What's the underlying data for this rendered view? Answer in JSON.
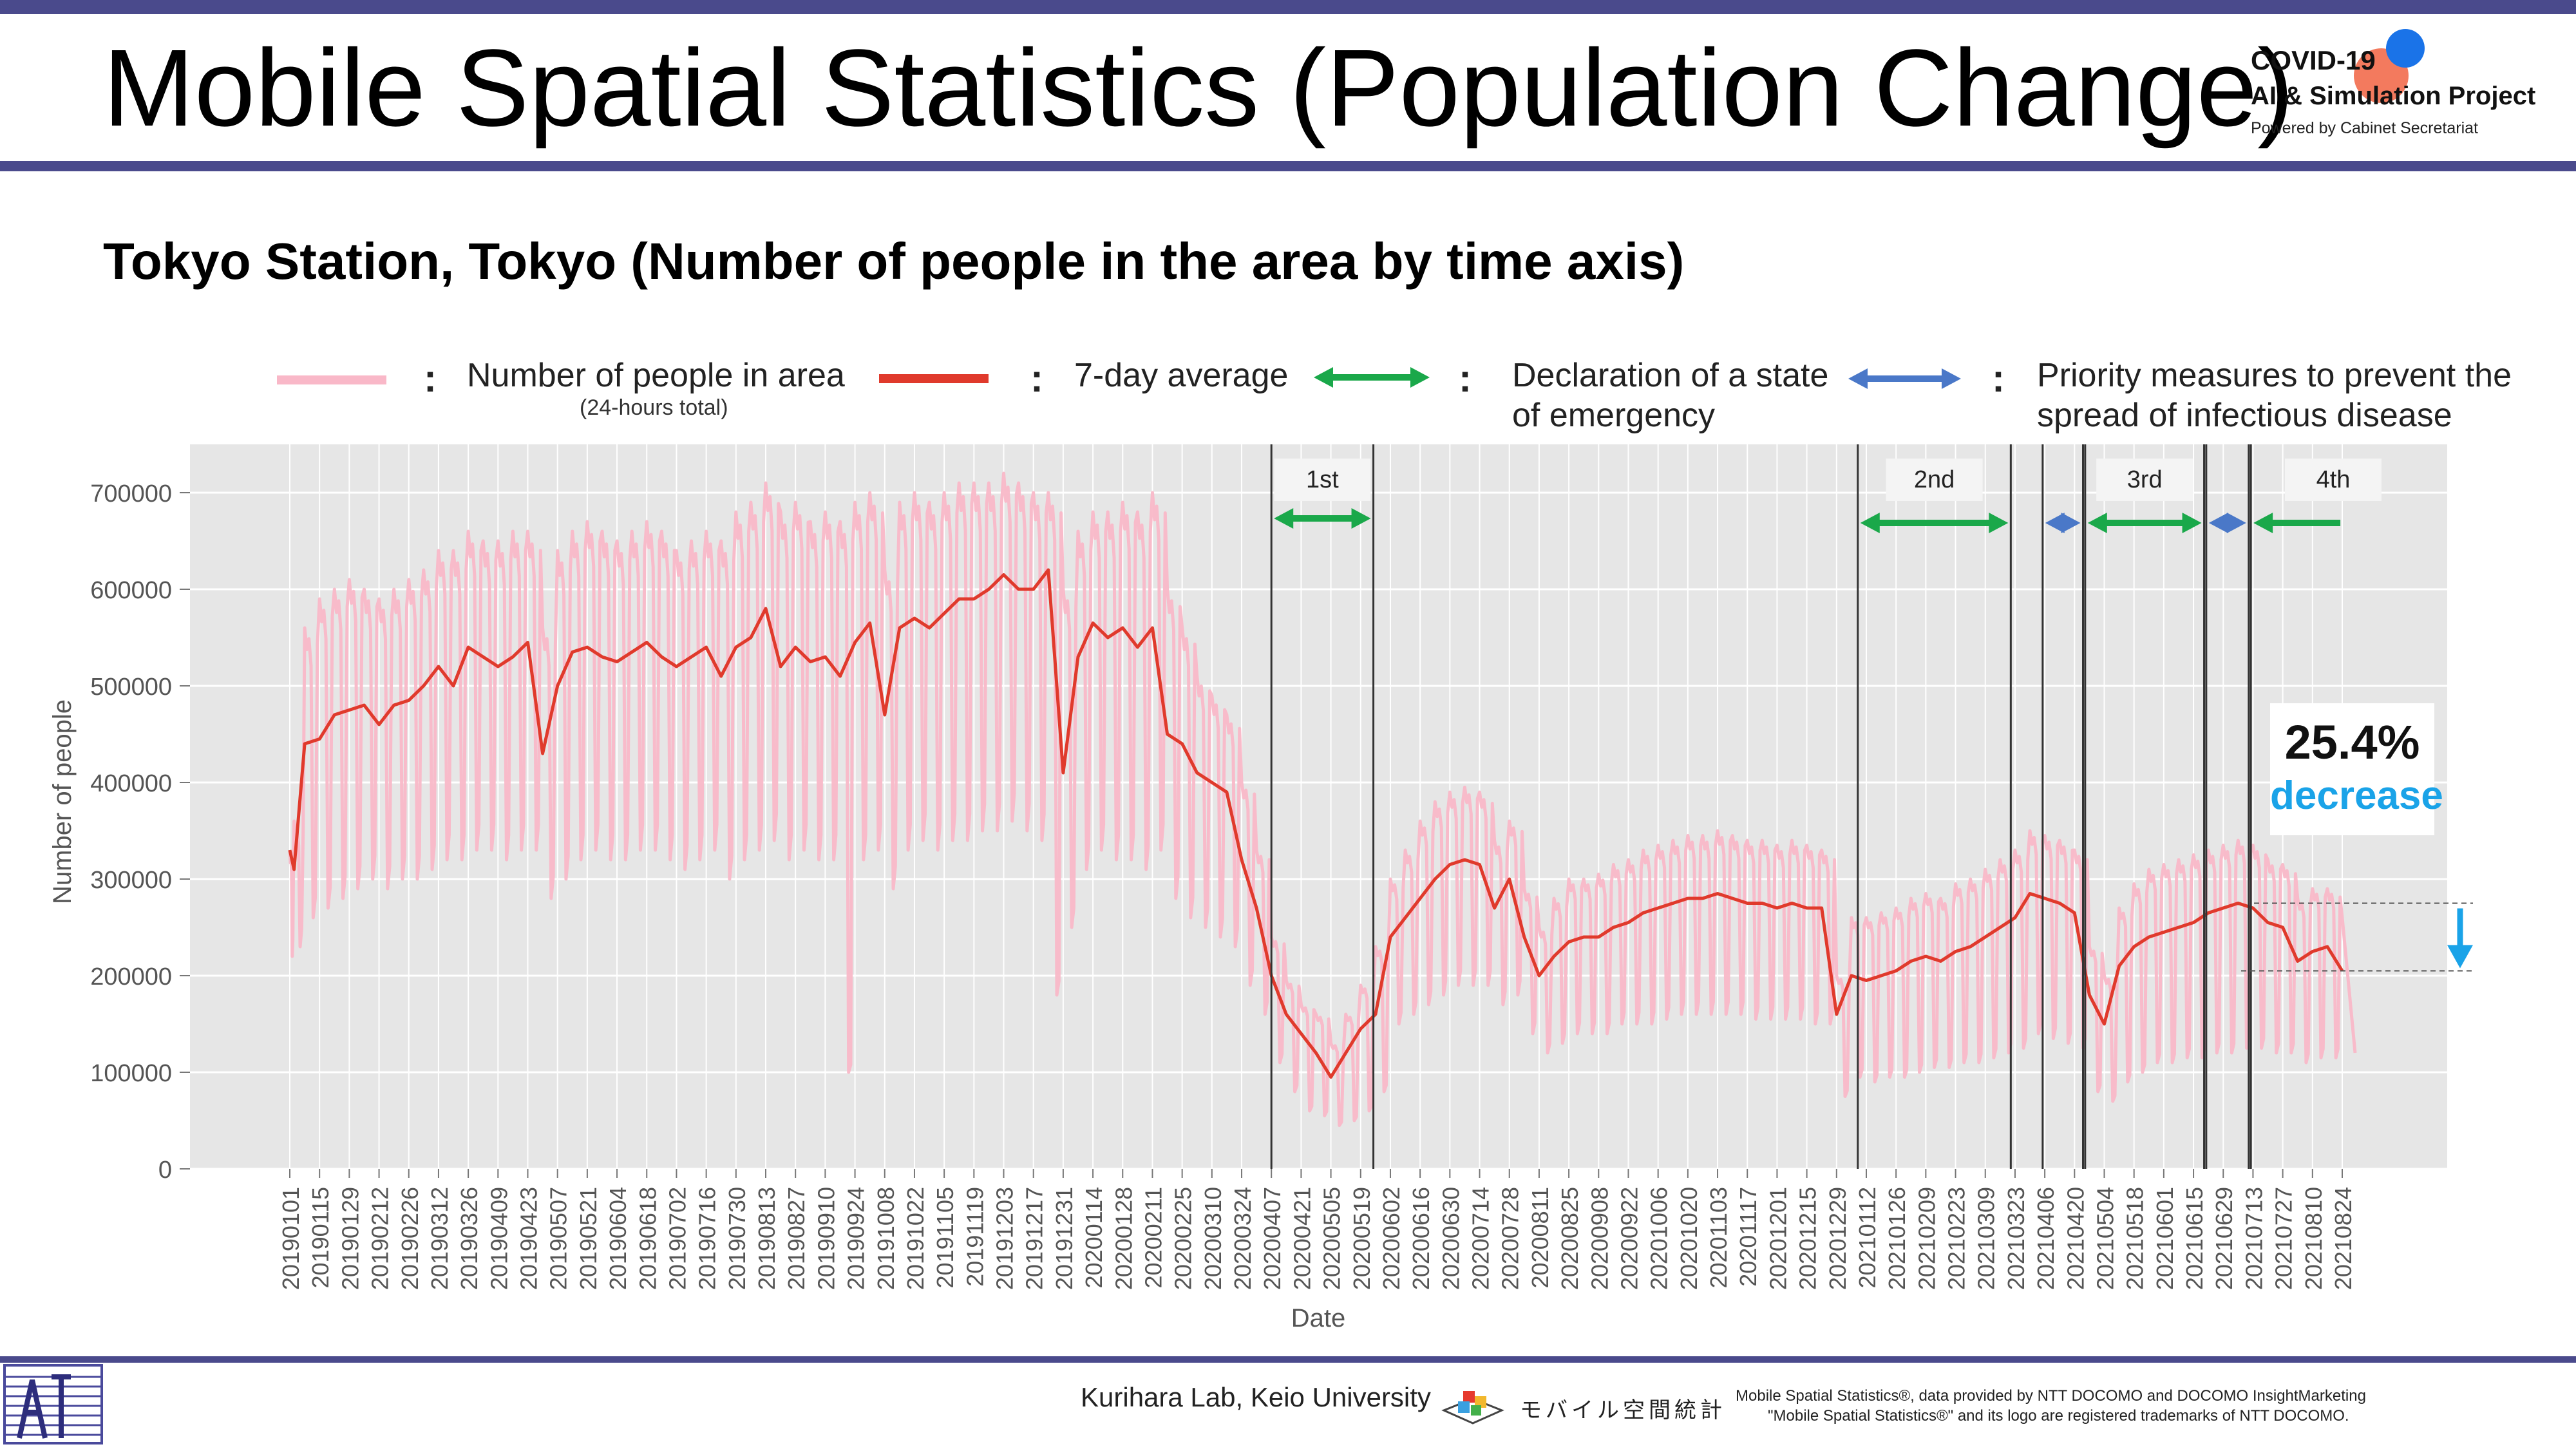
{
  "header": {
    "title": "Mobile Spatial Statistics (Population Change)",
    "logo_line1": "COVID-19",
    "logo_line2": "AI & Simulation Project",
    "logo_line3": "Powered by Cabinet Secretariat"
  },
  "subtitle": "Tokyo Station, Tokyo (Number of people in the area by time axis)",
  "legend": {
    "daily": "Number of people in area",
    "daily_note": "(24-hours total)",
    "avg": "7-day average",
    "emergency_line1": "Declaration of a state",
    "emergency_line2": "of emergency",
    "priority_line1": "Priority measures to prevent the",
    "priority_line2": "spread of infectious disease",
    "colon": ":"
  },
  "colors": {
    "daily": "#f9b8c8",
    "avg": "#e03a2c",
    "emergency": "#1aa84a",
    "priority": "#4a78c8",
    "plot_bg": "#e6e6e6",
    "grid": "#ffffff",
    "callout": "#1aa3e8"
  },
  "callout": {
    "percent": "25.4%",
    "word": "decrease"
  },
  "footer": {
    "lab": "Kurihara Lab, Keio University",
    "brand_jp": "モバイル空間統計",
    "notice_line1": "Mobile Spatial Statistics®, data provided by NTT DOCOMO and DOCOMO InsightMarketing",
    "notice_line2": "\"Mobile Spatial Statistics®\" and its logo are registered trademarks of NTT DOCOMO."
  },
  "chart_data": {
    "type": "line",
    "xlabel": "Date",
    "ylabel": "Number of people",
    "ylim": [
      0,
      750000
    ],
    "yticks": [
      0,
      100000,
      200000,
      300000,
      400000,
      500000,
      600000,
      700000
    ],
    "xticks": [
      "20190101",
      "20190115",
      "20190129",
      "20190212",
      "20190226",
      "20190312",
      "20190326",
      "20190409",
      "20190423",
      "20190507",
      "20190521",
      "20190604",
      "20190618",
      "20190702",
      "20190716",
      "20190730",
      "20190813",
      "20190827",
      "20190910",
      "20190924",
      "20191008",
      "20191022",
      "20191105",
      "20191119",
      "20191203",
      "20191217",
      "20191231",
      "20200114",
      "20200128",
      "20200211",
      "20200225",
      "20200310",
      "20200324",
      "20200407",
      "20200421",
      "20200505",
      "20200519",
      "20200602",
      "20200616",
      "20200630",
      "20200714",
      "20200728",
      "20200811",
      "20200825",
      "20200908",
      "20200922",
      "20201006",
      "20201020",
      "20201103",
      "20201117",
      "20201201",
      "20201215",
      "20201229",
      "20210112",
      "20210126",
      "20210209",
      "20210223",
      "20210309",
      "20210323",
      "20210406",
      "20210420",
      "20210504",
      "20210518",
      "20210601",
      "20210615",
      "20210629",
      "20210713",
      "20210727",
      "20210810",
      "20210824"
    ],
    "grid": true,
    "periods": [
      {
        "label": "1st",
        "kind": "emergency",
        "start": "20200407",
        "end": "20200525"
      },
      {
        "label": "2nd",
        "kind": "emergency",
        "start": "20210108",
        "end": "20210321"
      },
      {
        "label": "",
        "kind": "priority",
        "start": "20210405",
        "end": "20210424"
      },
      {
        "label": "3rd",
        "kind": "emergency",
        "start": "20210425",
        "end": "20210620"
      },
      {
        "label": "",
        "kind": "priority",
        "start": "20210621",
        "end": "20210711"
      },
      {
        "label": "4th",
        "kind": "emergency",
        "start": "20210712",
        "end": "20210831"
      }
    ],
    "series": [
      {
        "name": "7-day average",
        "x": [
          "20190101",
          "20190103",
          "20190108",
          "20190115",
          "20190122",
          "20190129",
          "20190205",
          "20190212",
          "20190219",
          "20190226",
          "20190305",
          "20190312",
          "20190319",
          "20190326",
          "20190402",
          "20190409",
          "20190416",
          "20190423",
          "20190430",
          "20190507",
          "20190514",
          "20190521",
          "20190528",
          "20190604",
          "20190611",
          "20190618",
          "20190625",
          "20190702",
          "20190709",
          "20190716",
          "20190723",
          "20190730",
          "20190806",
          "20190813",
          "20190820",
          "20190827",
          "20190903",
          "20190910",
          "20190917",
          "20190924",
          "20191001",
          "20191008",
          "20191015",
          "20191022",
          "20191029",
          "20191105",
          "20191112",
          "20191119",
          "20191126",
          "20191203",
          "20191210",
          "20191217",
          "20191224",
          "20191231",
          "20200107",
          "20200114",
          "20200121",
          "20200128",
          "20200204",
          "20200211",
          "20200218",
          "20200225",
          "20200303",
          "20200310",
          "20200317",
          "20200324",
          "20200331",
          "20200407",
          "20200414",
          "20200421",
          "20200428",
          "20200505",
          "20200512",
          "20200519",
          "20200526",
          "20200602",
          "20200609",
          "20200616",
          "20200623",
          "20200630",
          "20200707",
          "20200714",
          "20200721",
          "20200728",
          "20200804",
          "20200811",
          "20200818",
          "20200825",
          "20200901",
          "20200908",
          "20200915",
          "20200922",
          "20200929",
          "20201006",
          "20201013",
          "20201020",
          "20201027",
          "20201103",
          "20201110",
          "20201117",
          "20201124",
          "20201201",
          "20201208",
          "20201215",
          "20201222",
          "20201229",
          "20210105",
          "20210112",
          "20210119",
          "20210126",
          "20210202",
          "20210209",
          "20210216",
          "20210223",
          "20210302",
          "20210309",
          "20210316",
          "20210323",
          "20210330",
          "20210406",
          "20210413",
          "20210420",
          "20210427",
          "20210504",
          "20210511",
          "20210518",
          "20210525",
          "20210601",
          "20210608",
          "20210615",
          "20210622",
          "20210629",
          "20210706",
          "20210713",
          "20210720",
          "20210727",
          "20210803",
          "20210810",
          "20210817",
          "20210824"
        ],
        "values": [
          330000,
          310000,
          440000,
          445000,
          470000,
          475000,
          480000,
          460000,
          480000,
          485000,
          500000,
          520000,
          500000,
          540000,
          530000,
          520000,
          530000,
          545000,
          430000,
          500000,
          535000,
          540000,
          530000,
          525000,
          535000,
          545000,
          530000,
          520000,
          530000,
          540000,
          510000,
          540000,
          550000,
          580000,
          520000,
          540000,
          525000,
          530000,
          510000,
          545000,
          565000,
          470000,
          560000,
          570000,
          560000,
          575000,
          590000,
          590000,
          600000,
          615000,
          600000,
          600000,
          620000,
          410000,
          530000,
          565000,
          550000,
          560000,
          540000,
          560000,
          450000,
          440000,
          410000,
          400000,
          390000,
          320000,
          270000,
          200000,
          160000,
          140000,
          120000,
          95000,
          120000,
          145000,
          160000,
          240000,
          260000,
          280000,
          300000,
          315000,
          320000,
          315000,
          270000,
          300000,
          240000,
          200000,
          220000,
          235000,
          240000,
          240000,
          250000,
          255000,
          265000,
          270000,
          275000,
          280000,
          280000,
          285000,
          280000,
          275000,
          275000,
          270000,
          275000,
          270000,
          270000,
          160000,
          200000,
          195000,
          200000,
          205000,
          215000,
          220000,
          215000,
          225000,
          230000,
          240000,
          250000,
          260000,
          285000,
          280000,
          275000,
          265000,
          180000,
          150000,
          210000,
          230000,
          240000,
          245000,
          250000,
          255000,
          265000,
          270000,
          275000,
          270000,
          255000,
          250000,
          215000,
          225000,
          230000,
          205000
        ]
      },
      {
        "name": "Number of people in area",
        "weekday_high": [
          330000,
          360000,
          560000,
          590000,
          600000,
          610000,
          600000,
          590000,
          600000,
          610000,
          620000,
          640000,
          640000,
          660000,
          650000,
          650000,
          660000,
          660000,
          560000,
          640000,
          660000,
          670000,
          660000,
          650000,
          660000,
          670000,
          660000,
          640000,
          650000,
          660000,
          650000,
          680000,
          690000,
          710000,
          680000,
          690000,
          670000,
          680000,
          670000,
          690000,
          700000,
          620000,
          690000,
          700000,
          690000,
          700000,
          710000,
          710000,
          710000,
          720000,
          710000,
          700000,
          700000,
          600000,
          660000,
          680000,
          680000,
          690000,
          680000,
          700000,
          600000,
          560000,
          510000,
          490000,
          470000,
          400000,
          330000,
          240000,
          195000,
          170000,
          160000,
          130000,
          160000,
          190000,
          230000,
          300000,
          330000,
          360000,
          380000,
          390000,
          395000,
          390000,
          340000,
          360000,
          290000,
          250000,
          280000,
          300000,
          300000,
          305000,
          315000,
          320000,
          330000,
          335000,
          340000,
          345000,
          345000,
          350000,
          345000,
          340000,
          340000,
          335000,
          340000,
          335000,
          330000,
          200000,
          260000,
          260000,
          265000,
          270000,
          280000,
          285000,
          280000,
          295000,
          300000,
          310000,
          320000,
          330000,
          350000,
          345000,
          340000,
          330000,
          230000,
          200000,
          270000,
          295000,
          310000,
          315000,
          320000,
          325000,
          330000,
          335000,
          340000,
          335000,
          320000,
          315000,
          280000,
          290000,
          290000,
          260000
        ],
        "weekend_low": [
          220000,
          230000,
          260000,
          270000,
          280000,
          290000,
          300000,
          290000,
          300000,
          300000,
          310000,
          320000,
          320000,
          330000,
          330000,
          320000,
          330000,
          330000,
          280000,
          300000,
          320000,
          330000,
          320000,
          320000,
          330000,
          330000,
          320000,
          310000,
          320000,
          330000,
          300000,
          320000,
          330000,
          340000,
          320000,
          330000,
          320000,
          320000,
          100000,
          320000,
          330000,
          290000,
          330000,
          340000,
          330000,
          340000,
          340000,
          350000,
          350000,
          360000,
          350000,
          340000,
          180000,
          250000,
          310000,
          330000,
          320000,
          320000,
          310000,
          330000,
          280000,
          260000,
          250000,
          240000,
          230000,
          190000,
          160000,
          110000,
          80000,
          60000,
          55000,
          45000,
          50000,
          60000,
          80000,
          150000,
          160000,
          170000,
          180000,
          190000,
          190000,
          190000,
          170000,
          180000,
          140000,
          120000,
          130000,
          140000,
          140000,
          140000,
          150000,
          150000,
          150000,
          155000,
          160000,
          160000,
          160000,
          160000,
          160000,
          155000,
          155000,
          155000,
          155000,
          150000,
          150000,
          75000,
          95000,
          90000,
          95000,
          95000,
          100000,
          105000,
          105000,
          110000,
          110000,
          115000,
          120000,
          125000,
          140000,
          135000,
          130000,
          125000,
          80000,
          70000,
          90000,
          100000,
          110000,
          110000,
          115000,
          115000,
          120000,
          120000,
          125000,
          125000,
          120000,
          120000,
          110000,
          115000,
          115000,
          120000
        ]
      }
    ],
    "reference_lines": {
      "from": 275000,
      "to": 205000
    }
  }
}
